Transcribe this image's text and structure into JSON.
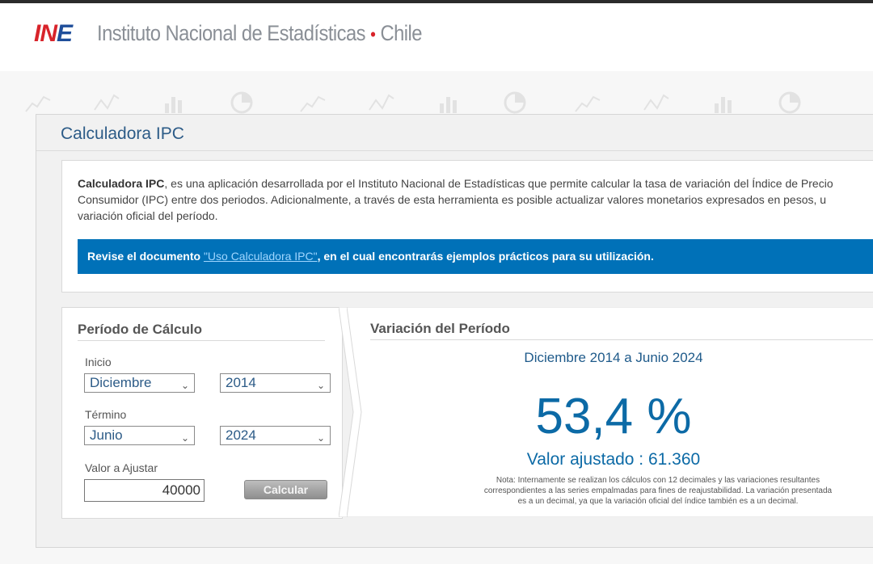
{
  "header": {
    "logo_text_in": "IN",
    "logo_text_e": "E",
    "site_title": "Instituto Nacional de Estadísticas",
    "site_dot": "•",
    "site_country": "Chile"
  },
  "colors": {
    "brand_blue": "#0071b8",
    "brand_red": "#d8232a",
    "title_blue": "#2c5b87",
    "result_blue": "#0c6aa6"
  },
  "panel": {
    "title": "Calculadora IPC",
    "intro_bold": "Calculadora IPC",
    "intro_line1": ", es una aplicación desarrollada por el Instituto Nacional de Estadísticas que permite calcular la tasa de variación del Índice de Precio",
    "intro_line2": "Consumidor (IPC) entre dos periodos. Adicionalmente, a través de esta herramienta es posible actualizar valores monetarios expresados en pesos, u",
    "intro_line3": "variación oficial del período.",
    "banner_prefix": "Revise el documento ",
    "banner_link": "\"Uso Calculadora IPC\"",
    "banner_suffix": ", en el cual encontrarás ejemplos prácticos para su utilización."
  },
  "calc": {
    "title": "Período de Cálculo",
    "inicio_label": "Inicio",
    "inicio_month": "Diciembre",
    "inicio_year": "2014",
    "termino_label": "Término",
    "termino_month": "Junio",
    "termino_year": "2024",
    "valor_label": "Valor a Ajustar",
    "valor_value": "40000",
    "button_label": "Calcular"
  },
  "result": {
    "title": "Variación del Período",
    "period": "Diciembre 2014 a Junio 2024",
    "percentage": "53,4 %",
    "adjusted": "Valor ajustado : 61.360",
    "note": "Nota: Internamente se realizan los cálculos con 12 decimales y las variaciones resultantes correspondientes a las series empalmadas para fines de reajustabilidad. La variación presentada es a un decimal, ya que la variación oficial del índice también es a un decimal."
  },
  "icons": [
    "chevron-down-icon",
    "watermark-line-chart-icon",
    "watermark-bar-chart-icon",
    "watermark-pie-chart-icon"
  ]
}
